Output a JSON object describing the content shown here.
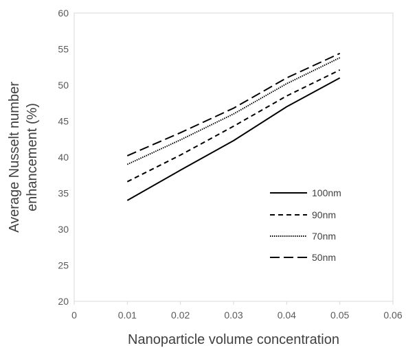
{
  "chart_data": {
    "type": "line",
    "title": "",
    "xlabel": "Nanoparticle volume concentration",
    "ylabel_lines": [
      "Average Nusselt number",
      "enhancement (%)"
    ],
    "xlim": [
      0,
      0.06
    ],
    "ylim": [
      20,
      60
    ],
    "x_ticks": [
      "0",
      "0.01",
      "0.02",
      "0.03",
      "0.04",
      "0.05",
      "0.06"
    ],
    "y_ticks": [
      "20",
      "25",
      "30",
      "35",
      "40",
      "45",
      "50",
      "55",
      "60"
    ],
    "grid": false,
    "legend_position": "bottom-right inside plot",
    "x": [
      0.01,
      0.02,
      0.03,
      0.04,
      0.05
    ],
    "series": [
      {
        "name": "100nm",
        "values": [
          34.0,
          38.2,
          42.3,
          47.0,
          51.0
        ],
        "style": "solid",
        "color": "#000000"
      },
      {
        "name": "90nm",
        "values": [
          36.6,
          40.3,
          44.3,
          48.5,
          52.1
        ],
        "style": "dashed",
        "color": "#000000"
      },
      {
        "name": "70nm",
        "values": [
          39.0,
          42.4,
          46.0,
          50.2,
          53.8
        ],
        "style": "dotted",
        "color": "#000000"
      },
      {
        "name": "50nm",
        "values": [
          40.2,
          43.4,
          46.8,
          51.0,
          54.4
        ],
        "style": "long-dash",
        "color": "#000000"
      }
    ]
  }
}
